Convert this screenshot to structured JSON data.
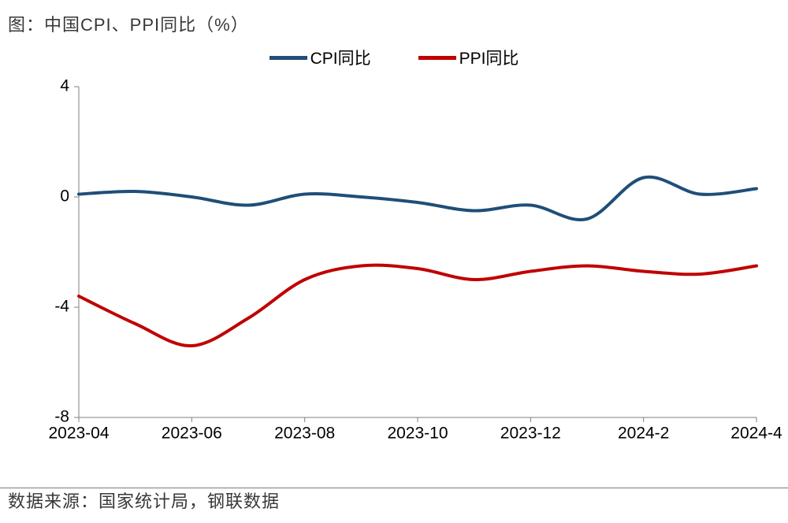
{
  "title": "图：中国CPI、PPI同比（%）",
  "source": "数据来源：国家统计局，钢联数据",
  "legend": {
    "cpi": {
      "label": "CPI同比",
      "color": "#1f4e79"
    },
    "ppi": {
      "label": "PPI同比",
      "color": "#c00000"
    }
  },
  "chart": {
    "type": "line",
    "background_color": "#ffffff",
    "axis_color": "#808080",
    "label_fontsize": 21,
    "title_fontsize": 22,
    "line_width": 4,
    "ylim": [
      -8,
      4
    ],
    "ytick_step": 4,
    "yticks": [
      4,
      0,
      -4,
      -8
    ],
    "x_labels": [
      "2023-04",
      "2023-06",
      "2023-08",
      "2023-10",
      "2023-12",
      "2024-2",
      "2024-4"
    ],
    "x_categories": [
      "2023-04",
      "2023-05",
      "2023-06",
      "2023-07",
      "2023-08",
      "2023-09",
      "2023-10",
      "2023-11",
      "2023-12",
      "2024-01",
      "2024-02",
      "2024-03",
      "2024-04"
    ],
    "series": {
      "cpi": {
        "color": "#1f4e79",
        "values": [
          0.1,
          0.2,
          0.0,
          -0.3,
          0.1,
          0.0,
          -0.2,
          -0.5,
          -0.3,
          -0.8,
          0.7,
          0.1,
          0.3
        ]
      },
      "ppi": {
        "color": "#c00000",
        "values": [
          -3.6,
          -4.6,
          -5.4,
          -4.4,
          -3.0,
          -2.5,
          -2.6,
          -3.0,
          -2.7,
          -2.5,
          -2.7,
          -2.8,
          -2.5
        ]
      }
    }
  }
}
